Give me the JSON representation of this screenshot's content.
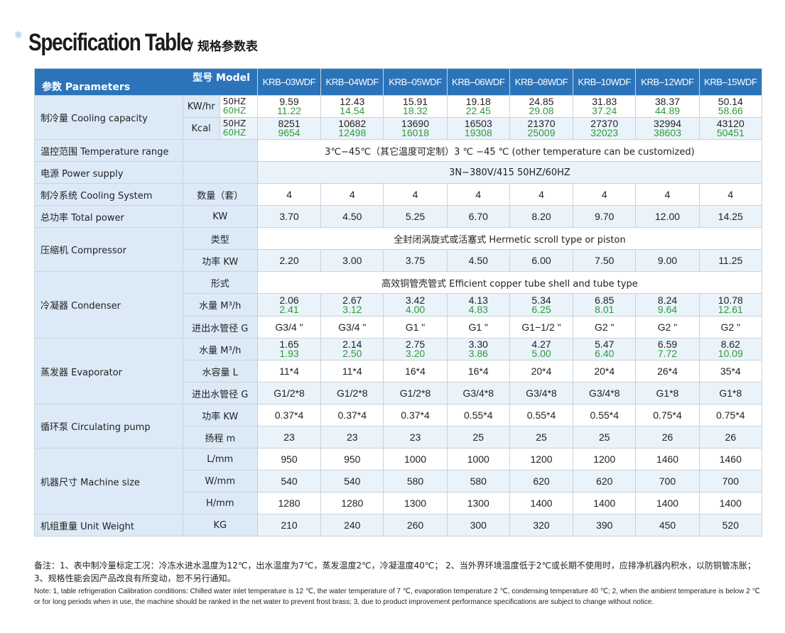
{
  "header": {
    "title": "Specification Table",
    "subtitle": "/ 规格参数表",
    "icon": "snowflake-icon",
    "accent_color": "#2c74ba",
    "value_green": "#2e9b3c"
  },
  "table": {
    "corner_model": "型号 Model",
    "corner_params": "参数 Parameters",
    "models": [
      "KRB–03WDF",
      "KRB–04WDF",
      "KRB–05WDF",
      "KRB–06WDF",
      "KRB–08WDF",
      "KRB–10WDF",
      "KRB–12WDF",
      "KRB–15WDF"
    ],
    "cooling": {
      "label": "制冷量 Cooling capacity",
      "kw_unit": "KW/hr",
      "kcal_unit": "Kcal",
      "hz50": "50HZ",
      "hz60": "60HZ",
      "kw50": [
        "9.59",
        "12.43",
        "15.91",
        "19.18",
        "24.85",
        "31.83",
        "38.37",
        "50.14"
      ],
      "kw60": [
        "11.22",
        "14.54",
        "18.32",
        "22.45",
        "29.08",
        "37.24",
        "44.89",
        "58.66"
      ],
      "kcal50": [
        "8251",
        "10682",
        "13690",
        "16503",
        "21370",
        "27370",
        "32994",
        "43120"
      ],
      "kcal60": [
        "9654",
        "12498",
        "16018",
        "19308",
        "25009",
        "32023",
        "38603",
        "50451"
      ]
    },
    "temp_range": {
      "label": "温控范围 Temperature range",
      "value": "3℃−45℃（其它温度可定制）3 ℃ −45 ℃ (other temperature can be customized)"
    },
    "power_supply": {
      "label": "电源 Power supply",
      "value": "3N−380V/415  50HZ/60HZ"
    },
    "cooling_system": {
      "label": "制冷系统 Cooling System",
      "sub": "数量（套）",
      "values": [
        "4",
        "4",
        "4",
        "4",
        "4",
        "4",
        "4",
        "4"
      ]
    },
    "total_power": {
      "label": "总功率 Total power",
      "sub": "KW",
      "values": [
        "3.70",
        "4.50",
        "5.25",
        "6.70",
        "8.20",
        "9.70",
        "12.00",
        "14.25"
      ]
    },
    "compressor": {
      "label": "压缩机 Compressor",
      "type_sub": "类型",
      "type_value": "全封闭涡旋式或活塞式 Hermetic scroll type or piston",
      "power_sub": "功率 KW",
      "power_values": [
        "2.20",
        "3.00",
        "3.75",
        "4.50",
        "6.00",
        "7.50",
        "9.00",
        "11.25"
      ]
    },
    "condenser": {
      "label": "冷凝器 Condenser",
      "form_sub": "形式",
      "form_value": "高效铜管壳管式 Efficient copper tube shell and tube type",
      "water_sub": "水量 M³/h",
      "water50": [
        "2.06",
        "2.67",
        "3.42",
        "4.13",
        "5.34",
        "6.85",
        "8.24",
        "10.78"
      ],
      "water60": [
        "2.41",
        "3.12",
        "4.00",
        "4.83",
        "6.25",
        "8.01",
        "9.64",
        "12.61"
      ],
      "pipe_sub": "进出水管径 G",
      "pipe_values": [
        "G3/4 \"",
        "G3/4 \"",
        "G1 \"",
        "G1 \"",
        "G1−1/2 \"",
        "G2 \"",
        "G2 \"",
        "G2 \""
      ]
    },
    "evaporator": {
      "label": "蒸发器 Evaporator",
      "water_sub": "水量 M³/h",
      "water50": [
        "1.65",
        "2.14",
        "2.75",
        "3.30",
        "4.27",
        "5.47",
        "6.59",
        "8.62"
      ],
      "water60": [
        "1.93",
        "2.50",
        "3.20",
        "3.86",
        "5.00",
        "6.40",
        "7.72",
        "10.09"
      ],
      "volume_sub": "水容量 L",
      "volume_values": [
        "11*4",
        "11*4",
        "16*4",
        "16*4",
        "20*4",
        "20*4",
        "26*4",
        "35*4"
      ],
      "pipe_sub": "进出水管径 G",
      "pipe_values": [
        "G1/2*8",
        "G1/2*8",
        "G1/2*8",
        "G3/4*8",
        "G3/4*8",
        "G3/4*8",
        "G1*8",
        "G1*8"
      ]
    },
    "pump": {
      "label": "循环泵 Circulating pump",
      "power_sub": "功率 KW",
      "power_values": [
        "0.37*4",
        "0.37*4",
        "0.37*4",
        "0.55*4",
        "0.55*4",
        "0.55*4",
        "0.75*4",
        "0.75*4"
      ],
      "head_sub": "扬程 m",
      "head_values": [
        "23",
        "23",
        "23",
        "25",
        "25",
        "25",
        "26",
        "26"
      ]
    },
    "size": {
      "label": "机器尺寸 Machine size",
      "l_sub": "L/mm",
      "l_values": [
        "950",
        "950",
        "1000",
        "1000",
        "1200",
        "1200",
        "1460",
        "1460"
      ],
      "w_sub": "W/mm",
      "w_values": [
        "540",
        "540",
        "580",
        "580",
        "620",
        "620",
        "700",
        "700"
      ],
      "h_sub": "H/mm",
      "h_values": [
        "1280",
        "1280",
        "1300",
        "1300",
        "1400",
        "1400",
        "1400",
        "1400"
      ]
    },
    "weight": {
      "label": "机组重量 Unit Weight",
      "sub": "KG",
      "values": [
        "210",
        "240",
        "260",
        "300",
        "320",
        "390",
        "450",
        "520"
      ]
    }
  },
  "notes": {
    "cn": "备注：1、表中制冷量标定工况：冷冻水进水温度为12℃，出水温度为7℃，蒸发温度2℃，冷凝温度40℃；  2、当外界环境温度低于2℃或长期不使用时，应排净机器内积水，以防铜管冻胀；3、规格性能会因产品改良有所变动，恕不另行通知。",
    "en": "Note: 1, table refrigeration Calibration conditions: Chilled water inlet temperature is 12 ℃, the water temperature of 7 ℃, evaporation temperature 2 ℃, condensing temperature 40 ℃; 2, when the ambient temperature is below 2 ℃ or for long periods when in use, the machine should be ranked in the net water to prevent frost brass; 3, due to product improvement performance specifications are subject to change without notice."
  }
}
